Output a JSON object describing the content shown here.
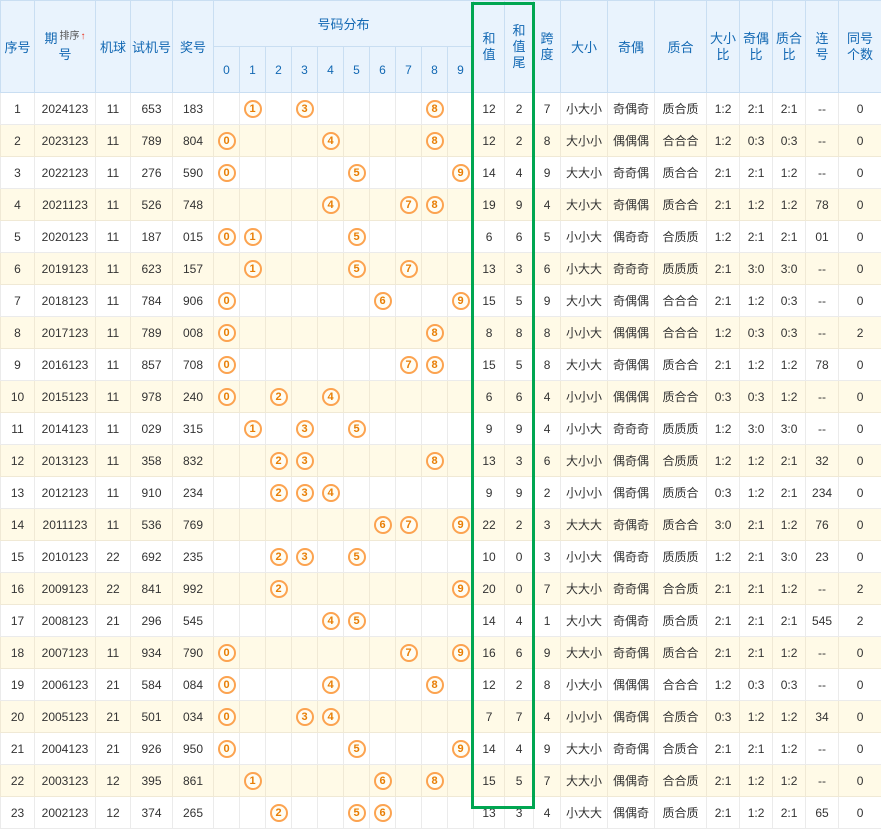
{
  "colors": {
    "header_bg": "#E9F3FD",
    "header_text": "#1268B3",
    "highlight_green": "#00A651",
    "ball_border": "#FCA350",
    "ball_text": "#E87E04",
    "stripe_bg": "#FFFAE7"
  },
  "header": {
    "col_xuhao": "序号",
    "col_qihao_line1": "期",
    "col_qihao_line2": "号",
    "sort_label": "排序",
    "sort_arrow": "↑",
    "col_jiqiu": "机球",
    "col_shijihao": "试机号",
    "col_jianghao": "奖号",
    "col_haoma_fenbu": "号码分布",
    "digit_cols": [
      "0",
      "1",
      "2",
      "3",
      "4",
      "5",
      "6",
      "7",
      "8",
      "9"
    ],
    "col_hezhi": [
      "和",
      "值"
    ],
    "col_hezhiwei": [
      "和",
      "值",
      "尾"
    ],
    "col_kuadu": [
      "跨",
      "度"
    ],
    "col_daxiao": "大小",
    "col_jiou": "奇偶",
    "col_zhihe": "质合",
    "col_daxiaobi": [
      "大小",
      "比"
    ],
    "col_jioubi": [
      "奇偶",
      "比"
    ],
    "col_zhihebi": [
      "质合",
      "比"
    ],
    "col_lianhao": [
      "连",
      "号"
    ],
    "col_tonghao": [
      "同号",
      "个数"
    ]
  },
  "rows": [
    {
      "seq": "1",
      "period": "2024123",
      "machine": "11",
      "test": "653",
      "prize": "183",
      "balls": [
        1,
        3,
        8
      ],
      "sum": "12",
      "sum_tail": "2",
      "span": "7",
      "size": "小大小",
      "parity": "奇偶奇",
      "prime": "质合质",
      "size_ratio": "1:2",
      "parity_ratio": "2:1",
      "prime_ratio": "2:1",
      "consecutive": "--",
      "same_count": "0"
    },
    {
      "seq": "2",
      "period": "2023123",
      "machine": "11",
      "test": "789",
      "prize": "804",
      "balls": [
        0,
        4,
        8
      ],
      "sum": "12",
      "sum_tail": "2",
      "span": "8",
      "size": "大小小",
      "parity": "偶偶偶",
      "prime": "合合合",
      "size_ratio": "1:2",
      "parity_ratio": "0:3",
      "prime_ratio": "0:3",
      "consecutive": "--",
      "same_count": "0"
    },
    {
      "seq": "3",
      "period": "2022123",
      "machine": "11",
      "test": "276",
      "prize": "590",
      "balls": [
        0,
        5,
        9
      ],
      "sum": "14",
      "sum_tail": "4",
      "span": "9",
      "size": "大大小",
      "parity": "奇奇偶",
      "prime": "质合合",
      "size_ratio": "2:1",
      "parity_ratio": "2:1",
      "prime_ratio": "1:2",
      "consecutive": "--",
      "same_count": "0"
    },
    {
      "seq": "4",
      "period": "2021123",
      "machine": "11",
      "test": "526",
      "prize": "748",
      "balls": [
        4,
        7,
        8
      ],
      "sum": "19",
      "sum_tail": "9",
      "span": "4",
      "size": "大小大",
      "parity": "奇偶偶",
      "prime": "质合合",
      "size_ratio": "2:1",
      "parity_ratio": "1:2",
      "prime_ratio": "1:2",
      "consecutive": "78",
      "same_count": "0"
    },
    {
      "seq": "5",
      "period": "2020123",
      "machine": "11",
      "test": "187",
      "prize": "015",
      "balls": [
        0,
        1,
        5
      ],
      "sum": "6",
      "sum_tail": "6",
      "span": "5",
      "size": "小小大",
      "parity": "偶奇奇",
      "prime": "合质质",
      "size_ratio": "1:2",
      "parity_ratio": "2:1",
      "prime_ratio": "2:1",
      "consecutive": "01",
      "same_count": "0"
    },
    {
      "seq": "6",
      "period": "2019123",
      "machine": "11",
      "test": "623",
      "prize": "157",
      "balls": [
        1,
        5,
        7
      ],
      "sum": "13",
      "sum_tail": "3",
      "span": "6",
      "size": "小大大",
      "parity": "奇奇奇",
      "prime": "质质质",
      "size_ratio": "2:1",
      "parity_ratio": "3:0",
      "prime_ratio": "3:0",
      "consecutive": "--",
      "same_count": "0"
    },
    {
      "seq": "7",
      "period": "2018123",
      "machine": "11",
      "test": "784",
      "prize": "906",
      "balls": [
        0,
        6,
        9
      ],
      "sum": "15",
      "sum_tail": "5",
      "span": "9",
      "size": "大小大",
      "parity": "奇偶偶",
      "prime": "合合合",
      "size_ratio": "2:1",
      "parity_ratio": "1:2",
      "prime_ratio": "0:3",
      "consecutive": "--",
      "same_count": "0"
    },
    {
      "seq": "8",
      "period": "2017123",
      "machine": "11",
      "test": "789",
      "prize": "008",
      "balls": [
        0,
        8
      ],
      "sum": "8",
      "sum_tail": "8",
      "span": "8",
      "size": "小小大",
      "parity": "偶偶偶",
      "prime": "合合合",
      "size_ratio": "1:2",
      "parity_ratio": "0:3",
      "prime_ratio": "0:3",
      "consecutive": "--",
      "same_count": "2"
    },
    {
      "seq": "9",
      "period": "2016123",
      "machine": "11",
      "test": "857",
      "prize": "708",
      "balls": [
        0,
        7,
        8
      ],
      "sum": "15",
      "sum_tail": "5",
      "span": "8",
      "size": "大小大",
      "parity": "奇偶偶",
      "prime": "质合合",
      "size_ratio": "2:1",
      "parity_ratio": "1:2",
      "prime_ratio": "1:2",
      "consecutive": "78",
      "same_count": "0"
    },
    {
      "seq": "10",
      "period": "2015123",
      "machine": "11",
      "test": "978",
      "prize": "240",
      "balls": [
        0,
        2,
        4
      ],
      "sum": "6",
      "sum_tail": "6",
      "span": "4",
      "size": "小小小",
      "parity": "偶偶偶",
      "prime": "质合合",
      "size_ratio": "0:3",
      "parity_ratio": "0:3",
      "prime_ratio": "1:2",
      "consecutive": "--",
      "same_count": "0"
    },
    {
      "seq": "11",
      "period": "2014123",
      "machine": "11",
      "test": "029",
      "prize": "315",
      "balls": [
        1,
        3,
        5
      ],
      "sum": "9",
      "sum_tail": "9",
      "span": "4",
      "size": "小小大",
      "parity": "奇奇奇",
      "prime": "质质质",
      "size_ratio": "1:2",
      "parity_ratio": "3:0",
      "prime_ratio": "3:0",
      "consecutive": "--",
      "same_count": "0"
    },
    {
      "seq": "12",
      "period": "2013123",
      "machine": "11",
      "test": "358",
      "prize": "832",
      "balls": [
        2,
        3,
        8
      ],
      "sum": "13",
      "sum_tail": "3",
      "span": "6",
      "size": "大小小",
      "parity": "偶奇偶",
      "prime": "合质质",
      "size_ratio": "1:2",
      "parity_ratio": "1:2",
      "prime_ratio": "2:1",
      "consecutive": "32",
      "same_count": "0"
    },
    {
      "seq": "13",
      "period": "2012123",
      "machine": "11",
      "test": "910",
      "prize": "234",
      "balls": [
        2,
        3,
        4
      ],
      "sum": "9",
      "sum_tail": "9",
      "span": "2",
      "size": "小小小",
      "parity": "偶奇偶",
      "prime": "质质合",
      "size_ratio": "0:3",
      "parity_ratio": "1:2",
      "prime_ratio": "2:1",
      "consecutive": "234",
      "same_count": "0"
    },
    {
      "seq": "14",
      "period": "2011123",
      "machine": "11",
      "test": "536",
      "prize": "769",
      "balls": [
        6,
        7,
        9
      ],
      "sum": "22",
      "sum_tail": "2",
      "span": "3",
      "size": "大大大",
      "parity": "奇偶奇",
      "prime": "质合合",
      "size_ratio": "3:0",
      "parity_ratio": "2:1",
      "prime_ratio": "1:2",
      "consecutive": "76",
      "same_count": "0"
    },
    {
      "seq": "15",
      "period": "2010123",
      "machine": "22",
      "test": "692",
      "prize": "235",
      "balls": [
        2,
        3,
        5
      ],
      "sum": "10",
      "sum_tail": "0",
      "span": "3",
      "size": "小小大",
      "parity": "偶奇奇",
      "prime": "质质质",
      "size_ratio": "1:2",
      "parity_ratio": "2:1",
      "prime_ratio": "3:0",
      "consecutive": "23",
      "same_count": "0"
    },
    {
      "seq": "16",
      "period": "2009123",
      "machine": "22",
      "test": "841",
      "prize": "992",
      "balls": [
        2,
        9
      ],
      "sum": "20",
      "sum_tail": "0",
      "span": "7",
      "size": "大大小",
      "parity": "奇奇偶",
      "prime": "合合质",
      "size_ratio": "2:1",
      "parity_ratio": "2:1",
      "prime_ratio": "1:2",
      "consecutive": "--",
      "same_count": "2"
    },
    {
      "seq": "17",
      "period": "2008123",
      "machine": "21",
      "test": "296",
      "prize": "545",
      "balls": [
        4,
        5
      ],
      "sum": "14",
      "sum_tail": "4",
      "span": "1",
      "size": "大小大",
      "parity": "奇偶奇",
      "prime": "质合质",
      "size_ratio": "2:1",
      "parity_ratio": "2:1",
      "prime_ratio": "2:1",
      "consecutive": "545",
      "same_count": "2"
    },
    {
      "seq": "18",
      "period": "2007123",
      "machine": "11",
      "test": "934",
      "prize": "790",
      "balls": [
        0,
        7,
        9
      ],
      "sum": "16",
      "sum_tail": "6",
      "span": "9",
      "size": "大大小",
      "parity": "奇奇偶",
      "prime": "质合合",
      "size_ratio": "2:1",
      "parity_ratio": "2:1",
      "prime_ratio": "1:2",
      "consecutive": "--",
      "same_count": "0"
    },
    {
      "seq": "19",
      "period": "2006123",
      "machine": "21",
      "test": "584",
      "prize": "084",
      "balls": [
        0,
        4,
        8
      ],
      "sum": "12",
      "sum_tail": "2",
      "span": "8",
      "size": "小大小",
      "parity": "偶偶偶",
      "prime": "合合合",
      "size_ratio": "1:2",
      "parity_ratio": "0:3",
      "prime_ratio": "0:3",
      "consecutive": "--",
      "same_count": "0"
    },
    {
      "seq": "20",
      "period": "2005123",
      "machine": "21",
      "test": "501",
      "prize": "034",
      "balls": [
        0,
        3,
        4
      ],
      "sum": "7",
      "sum_tail": "7",
      "span": "4",
      "size": "小小小",
      "parity": "偶奇偶",
      "prime": "合质合",
      "size_ratio": "0:3",
      "parity_ratio": "1:2",
      "prime_ratio": "1:2",
      "consecutive": "34",
      "same_count": "0"
    },
    {
      "seq": "21",
      "period": "2004123",
      "machine": "21",
      "test": "926",
      "prize": "950",
      "balls": [
        0,
        5,
        9
      ],
      "sum": "14",
      "sum_tail": "4",
      "span": "9",
      "size": "大大小",
      "parity": "奇奇偶",
      "prime": "合质合",
      "size_ratio": "2:1",
      "parity_ratio": "2:1",
      "prime_ratio": "1:2",
      "consecutive": "--",
      "same_count": "0"
    },
    {
      "seq": "22",
      "period": "2003123",
      "machine": "12",
      "test": "395",
      "prize": "861",
      "balls": [
        1,
        6,
        8
      ],
      "sum": "15",
      "sum_tail": "5",
      "span": "7",
      "size": "大大小",
      "parity": "偶偶奇",
      "prime": "合合质",
      "size_ratio": "2:1",
      "parity_ratio": "1:2",
      "prime_ratio": "1:2",
      "consecutive": "--",
      "same_count": "0"
    },
    {
      "seq": "23",
      "period": "2002123",
      "machine": "12",
      "test": "374",
      "prize": "265",
      "balls": [
        2,
        5,
        6
      ],
      "sum": "13",
      "sum_tail": "3",
      "span": "4",
      "size": "小大大",
      "parity": "偶偶奇",
      "prime": "质合质",
      "size_ratio": "2:1",
      "parity_ratio": "1:2",
      "prime_ratio": "2:1",
      "consecutive": "65",
      "same_count": "0"
    }
  ]
}
